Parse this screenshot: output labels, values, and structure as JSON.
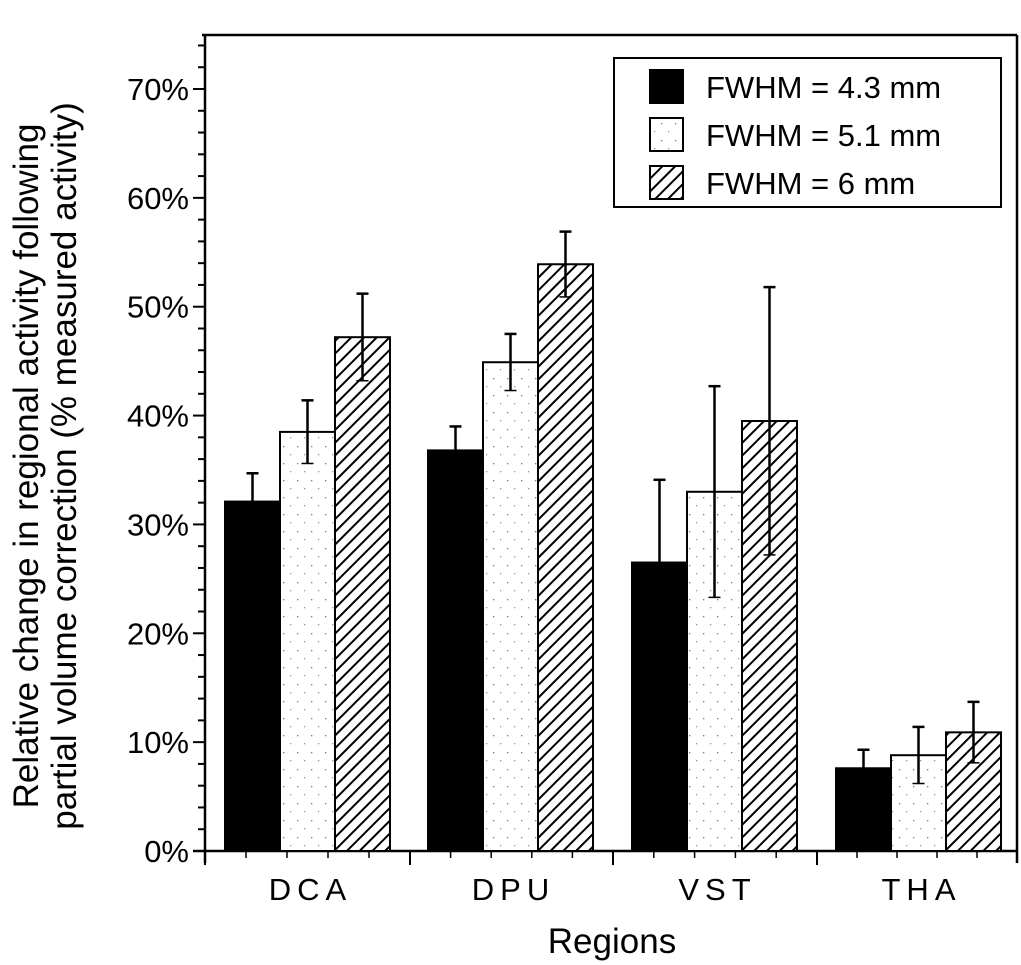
{
  "chart_data": {
    "type": "bar",
    "title": "",
    "xlabel": "Regions",
    "ylabel_lines": [
      "Relative change in regional activity following",
      "partial volume  correction (% measured activity)"
    ],
    "categories": [
      "DCA",
      "DPU",
      "VST",
      "THA"
    ],
    "ylim": [
      0,
      75
    ],
    "yticks": [
      0,
      10,
      20,
      30,
      40,
      50,
      60,
      70
    ],
    "ytick_labels": [
      "0%",
      "10%",
      "20%",
      "30%",
      "40%",
      "50%",
      "60%",
      "70%"
    ],
    "yminor_step": 2,
    "grid": false,
    "legend_position": "top-right",
    "series": [
      {
        "name": "FWHM = 4.3 mm",
        "fill": "solid-black",
        "values": [
          32.1,
          36.8,
          26.5,
          7.6
        ],
        "errors": [
          2.6,
          2.2,
          7.6,
          1.7
        ]
      },
      {
        "name": "FWHM = 5.1 mm",
        "fill": "dotted-white",
        "values": [
          38.5,
          44.9,
          33.0,
          8.8
        ],
        "errors": [
          2.9,
          2.6,
          9.7,
          2.6
        ]
      },
      {
        "name": "FWHM = 6 mm",
        "fill": "diagonal-hatch",
        "values": [
          47.2,
          53.9,
          39.5,
          10.9
        ],
        "errors": [
          4.0,
          3.0,
          12.3,
          2.8
        ]
      }
    ],
    "colors": {
      "ink": "#000000",
      "background": "#ffffff"
    }
  }
}
